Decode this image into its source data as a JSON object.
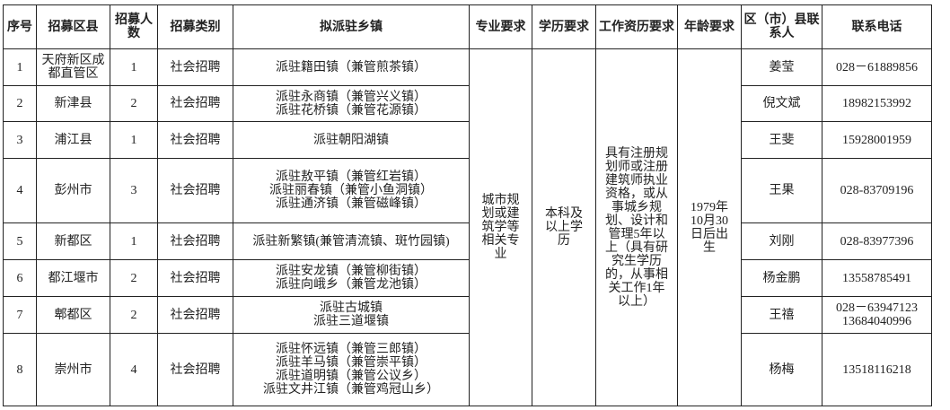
{
  "headers": [
    "序号",
    "招募区县",
    "招募人数",
    "招募类别",
    "拟派驻乡镇",
    "专业要求",
    "学历要求",
    "工作资历要求",
    "年龄要求",
    "区（市）县联系人",
    "联系电话"
  ],
  "rows": [
    {
      "no": "1",
      "county": "天府新区成都直管区",
      "count": "1",
      "type": "社会招聘",
      "towns": [
        "派驻籍田镇（兼管煎茶镇）"
      ],
      "contact": "姜莹",
      "phone": [
        "028－61889856"
      ]
    },
    {
      "no": "2",
      "county": "新津县",
      "count": "2",
      "type": "社会招聘",
      "towns": [
        "派驻永商镇（兼管兴义镇）",
        "派驻花桥镇（兼管花源镇）"
      ],
      "contact": "倪文斌",
      "phone": [
        "18982153992"
      ]
    },
    {
      "no": "3",
      "county": "浦江县",
      "count": "1",
      "type": "社会招聘",
      "towns": [
        "派驻朝阳湖镇"
      ],
      "contact": "王斐",
      "phone": [
        "15928001959"
      ]
    },
    {
      "no": "4",
      "county": "彭州市",
      "count": "3",
      "type": "社会招聘",
      "towns": [
        "派驻敖平镇（兼管红岩镇）",
        "派驻丽春镇（兼管小鱼洞镇）",
        "派驻通济镇（兼管磁峰镇）"
      ],
      "contact": "王果",
      "phone": [
        "028-83709196"
      ]
    },
    {
      "no": "5",
      "county": "新都区",
      "count": "1",
      "type": "社会招聘",
      "towns": [
        "派驻新繁镇(兼管清流镇、斑竹园镇)"
      ],
      "contact": "刘刚",
      "phone": [
        "028-83977396"
      ]
    },
    {
      "no": "6",
      "county": "都江堰市",
      "count": "2",
      "type": "社会招聘",
      "towns": [
        "派驻安龙镇（兼管柳街镇）",
        "派驻向峨乡（兼管龙池镇）"
      ],
      "contact": "杨金鹏",
      "phone": [
        "13558785491"
      ]
    },
    {
      "no": "7",
      "county": "郫都区",
      "count": "2",
      "type": "社会招聘",
      "towns": [
        "派驻古城镇",
        "派驻三道堰镇"
      ],
      "contact": "王禧",
      "phone": [
        "028－63947123",
        "13684040996"
      ]
    },
    {
      "no": "8",
      "county": "崇州市",
      "count": "4",
      "type": "社会招聘",
      "towns": [
        "派驻怀远镇（兼管三郎镇）",
        "派驻羊马镇（兼管崇平镇）",
        "派驻道明镇（兼管公议乡）",
        "派驻文井江镇（兼管鸡冠山乡）"
      ],
      "contact": "杨梅",
      "phone": [
        "13518116218"
      ]
    }
  ],
  "shared": {
    "major": "城市规划或建筑学等相关专业",
    "education": "本科及以上学历",
    "experience": "具有注册规划师或注册建筑师执业资格，或从事城乡规划、设计和管理5年以上（具有研究生学历的，从事相关工作1年以上）",
    "age": "1979年10月30日后出生"
  }
}
